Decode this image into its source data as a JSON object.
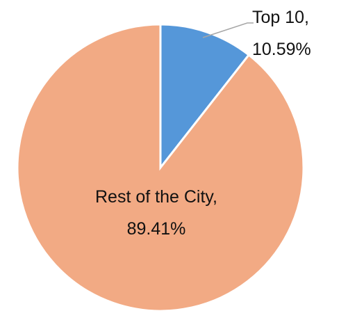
{
  "chart_data": {
    "type": "pie",
    "categories": [
      "Top 10,",
      "Rest of the City,"
    ],
    "values": [
      10.59,
      89.41
    ],
    "value_labels": [
      "10.59%",
      "89.41%"
    ],
    "colors": [
      "#5597d9",
      "#f2aa84"
    ]
  }
}
